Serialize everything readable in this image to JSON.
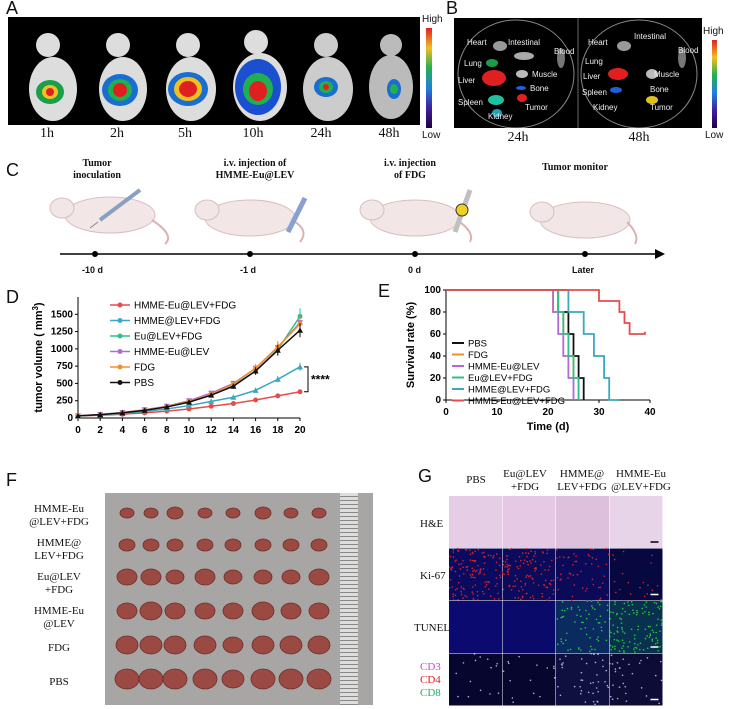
{
  "panels": {
    "A": {
      "label": "A",
      "timepoints": [
        "1h",
        "2h",
        "5h",
        "10h",
        "24h",
        "48h"
      ],
      "colorbar": {
        "high": "High",
        "low": "Low"
      }
    },
    "B": {
      "label": "B",
      "timepoints": [
        "24h",
        "48h"
      ],
      "organs_24h": [
        "Heart",
        "Intestinal",
        "Blood",
        "Lung",
        "Liver",
        "Muscle",
        "Bone",
        "Spleen",
        "Tumor",
        "Kidney"
      ],
      "organs_48h": [
        "Heart",
        "Intestinal",
        "Blood",
        "Lung",
        "Liver",
        "Muscle",
        "Bone",
        "Spleen",
        "Tumor",
        "Kidney"
      ],
      "colorbar": {
        "high": "High",
        "low": "Low"
      }
    },
    "C": {
      "label": "C",
      "steps": [
        {
          "title_line1": "Tumor",
          "title_line2": "inoculation",
          "day": "-10 d"
        },
        {
          "title_line1": "i.v. injection of",
          "title_line2": "HMME-Eu@LEV",
          "day": "-1 d"
        },
        {
          "title_line1": "i.v. injection",
          "title_line2": "of FDG",
          "day": "0 d"
        },
        {
          "title_line1": "Tumor monitor",
          "title_line2": "",
          "day": "Later"
        }
      ]
    },
    "D": {
      "label": "D"
    },
    "E": {
      "label": "E"
    },
    "F": {
      "label": "F",
      "groups": [
        {
          "line1": "HMME-Eu",
          "line2": "@LEV+FDG"
        },
        {
          "line1": "HMME@",
          "line2": "LEV+FDG"
        },
        {
          "line1": "Eu@LEV",
          "line2": "+FDG"
        },
        {
          "line1": "HMME-Eu",
          "line2": "@LEV"
        },
        {
          "line1": "FDG",
          "line2": ""
        },
        {
          "line1": "PBS",
          "line2": ""
        }
      ]
    },
    "G": {
      "label": "G",
      "columns": [
        {
          "line1": "PBS",
          "line2": ""
        },
        {
          "line1": "Eu@LEV",
          "line2": "+FDG"
        },
        {
          "line1": "HMME@",
          "line2": "LEV+FDG"
        },
        {
          "line1": "HMME-Eu",
          "line2": "@LEV+FDG"
        }
      ],
      "rows": [
        "H&E",
        "Ki-67",
        "TUNEL"
      ],
      "stain_labels": [
        {
          "text": "CD3",
          "color": "#cc44cc"
        },
        {
          "text": "CD4",
          "color": "#e02020"
        },
        {
          "text": "CD8",
          "color": "#20b060"
        }
      ]
    }
  },
  "chart_data": [
    {
      "type": "line",
      "panel": "D",
      "xlabel": "",
      "ylabel": "tumor volume ( mm3)",
      "ylabel_main": "tumor volume ( mm",
      "ylabel_sup": "3",
      "ylabel_end": ")",
      "x": [
        0,
        2,
        4,
        6,
        8,
        10,
        12,
        14,
        16,
        18,
        20
      ],
      "xlim": [
        0,
        20
      ],
      "ylim": [
        0,
        1750
      ],
      "yticks": [
        0,
        250,
        500,
        750,
        1000,
        1250,
        1500
      ],
      "significance": "****",
      "series": [
        {
          "name": "HMME-Eu@LEV+FDG",
          "color": "#e84b4b",
          "marker": "circle",
          "values": [
            30,
            40,
            55,
            75,
            100,
            130,
            170,
            210,
            260,
            320,
            380
          ]
        },
        {
          "name": "HMME@LEV+FDG",
          "color": "#3aa8c0",
          "marker": "triangle",
          "values": [
            30,
            45,
            65,
            95,
            130,
            180,
            240,
            300,
            400,
            560,
            740
          ]
        },
        {
          "name": "Eu@LEV+FDG",
          "color": "#2fbf8a",
          "marker": "circle",
          "values": [
            30,
            50,
            75,
            110,
            160,
            230,
            330,
            470,
            680,
            990,
            1470
          ]
        },
        {
          "name": "HMME-Eu@LEV",
          "color": "#b06ad8",
          "marker": "triangle-down",
          "values": [
            30,
            50,
            80,
            120,
            170,
            250,
            360,
            500,
            720,
            1020,
            1380
          ]
        },
        {
          "name": "FDG",
          "color": "#f0902a",
          "marker": "diamond",
          "values": [
            30,
            48,
            78,
            115,
            165,
            240,
            340,
            490,
            720,
            1030,
            1360
          ]
        },
        {
          "name": "PBS",
          "color": "#111111",
          "marker": "triangle",
          "values": [
            30,
            48,
            75,
            110,
            160,
            230,
            330,
            460,
            680,
            980,
            1270
          ]
        }
      ]
    },
    {
      "type": "line",
      "panel": "E",
      "xlabel": "Time (d)",
      "ylabel": "Survival rate (%)",
      "x_ticks": [
        0,
        10,
        20,
        30,
        40
      ],
      "xlim": [
        0,
        40
      ],
      "ylim": [
        0,
        100
      ],
      "yticks": [
        0,
        20,
        40,
        60,
        80,
        100
      ],
      "series": [
        {
          "name": "PBS",
          "color": "#111111",
          "steps": [
            [
              0,
              100
            ],
            [
              22,
              100
            ],
            [
              22,
              80
            ],
            [
              24,
              80
            ],
            [
              24,
              60
            ],
            [
              25,
              60
            ],
            [
              25,
              40
            ],
            [
              26,
              40
            ],
            [
              26,
              20
            ],
            [
              27,
              20
            ],
            [
              27,
              0
            ]
          ]
        },
        {
          "name": "FDG",
          "color": "#f0902a",
          "steps": [
            [
              0,
              100
            ],
            [
              21,
              100
            ],
            [
              21,
              80
            ],
            [
              23,
              80
            ],
            [
              23,
              60
            ],
            [
              24,
              60
            ],
            [
              24,
              40
            ],
            [
              25,
              40
            ],
            [
              25,
              20
            ],
            [
              26,
              20
            ],
            [
              26,
              0
            ]
          ]
        },
        {
          "name": "HMME-Eu@LEV",
          "color": "#b06ad8",
          "steps": [
            [
              0,
              100
            ],
            [
              21,
              100
            ],
            [
              21,
              80
            ],
            [
              22,
              80
            ],
            [
              22,
              60
            ],
            [
              23,
              60
            ],
            [
              23,
              40
            ],
            [
              24,
              40
            ],
            [
              24,
              20
            ],
            [
              25,
              20
            ],
            [
              25,
              0
            ]
          ]
        },
        {
          "name": "Eu@LEV+FDG",
          "color": "#2fbf8a",
          "steps": [
            [
              0,
              100
            ],
            [
              22,
              100
            ],
            [
              22,
              80
            ],
            [
              23,
              80
            ],
            [
              23,
              60
            ],
            [
              24,
              60
            ],
            [
              24,
              40
            ],
            [
              25,
              40
            ],
            [
              25,
              20
            ],
            [
              26,
              20
            ],
            [
              26,
              0
            ]
          ]
        },
        {
          "name": "HMME@LEV+FDG",
          "color": "#3aa8c0",
          "steps": [
            [
              0,
              100
            ],
            [
              24,
              100
            ],
            [
              24,
              80
            ],
            [
              27,
              80
            ],
            [
              27,
              60
            ],
            [
              29,
              60
            ],
            [
              29,
              40
            ],
            [
              31,
              40
            ],
            [
              31,
              20
            ],
            [
              32,
              20
            ],
            [
              32,
              0
            ],
            [
              34,
              0
            ]
          ]
        },
        {
          "name": "HMME-Eu@LEV+FDG",
          "color": "#e84b4b",
          "steps": [
            [
              0,
              100
            ],
            [
              30,
              100
            ],
            [
              30,
              90
            ],
            [
              34,
              90
            ],
            [
              34,
              80
            ],
            [
              35,
              80
            ],
            [
              35,
              70
            ],
            [
              36,
              70
            ],
            [
              36,
              60
            ],
            [
              38,
              60
            ],
            [
              39,
              60
            ],
            [
              39,
              62
            ]
          ]
        }
      ]
    }
  ]
}
